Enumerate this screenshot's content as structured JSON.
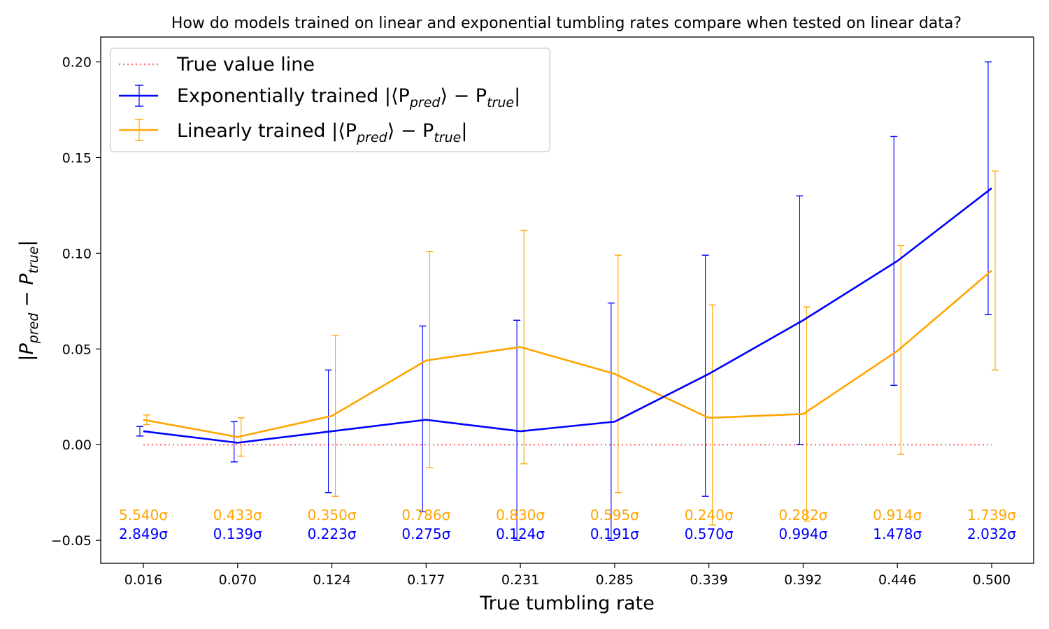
{
  "chart_data": {
    "type": "line",
    "title": "How do models trained on linear and exponential tumbling rates compare when tested on linear data?",
    "xlabel": "True tumbling rate",
    "ylabel_main": "|P",
    "ylabel_sub1": "pred",
    "ylabel_mid": " − P",
    "ylabel_sub2": "true",
    "ylabel_end": "|",
    "x": [
      0.016,
      0.07,
      0.124,
      0.177,
      0.231,
      0.285,
      0.339,
      0.392,
      0.446,
      0.5
    ],
    "xtick_labels": [
      "0.016",
      "0.070",
      "0.124",
      "0.177",
      "0.231",
      "0.285",
      "0.339",
      "0.392",
      "0.446",
      "0.500"
    ],
    "ylim": [
      -0.062,
      0.213
    ],
    "yticks": [
      -0.05,
      0.0,
      0.05,
      0.1,
      0.15,
      0.2
    ],
    "ytick_labels": [
      "−0.05",
      "0.00",
      "0.05",
      "0.10",
      "0.15",
      "0.20"
    ],
    "legend_position": "top-left",
    "legend": {
      "true_line_label": "True value line",
      "exp_label": "Exponentially trained |⟨P",
      "lin_label": "Linearly trained |⟨P",
      "sub_pred": "pred",
      "mid": "⟩ − P",
      "sub_true": "true",
      "end": "|"
    },
    "true_line": {
      "y": 0.0,
      "color": "#ff7777"
    },
    "series": [
      {
        "key": "exp",
        "color": "#0000ff",
        "values": [
          0.007,
          0.001,
          0.007,
          0.013,
          0.007,
          0.012,
          0.037,
          0.065,
          0.096,
          0.134
        ],
        "err_low": [
          0.0045,
          -0.009,
          -0.025,
          -0.035,
          -0.05,
          -0.05,
          -0.027,
          0.0,
          0.031,
          0.068
        ],
        "err_high": [
          0.0095,
          0.012,
          0.039,
          0.062,
          0.065,
          0.074,
          0.099,
          0.13,
          0.161,
          0.2
        ],
        "sigma_labels": [
          "2.849σ",
          "0.139σ",
          "0.223σ",
          "0.275σ",
          "0.124σ",
          "0.191σ",
          "0.570σ",
          "0.994σ",
          "1.478σ",
          "2.032σ"
        ]
      },
      {
        "key": "lin",
        "color": "#ffa500",
        "values": [
          0.013,
          0.004,
          0.015,
          0.044,
          0.051,
          0.037,
          0.014,
          0.016,
          0.049,
          0.091
        ],
        "err_low": [
          0.0105,
          -0.006,
          -0.027,
          -0.012,
          -0.01,
          -0.025,
          -0.042,
          -0.04,
          -0.005,
          0.039
        ],
        "err_high": [
          0.0155,
          0.014,
          0.057,
          0.101,
          0.112,
          0.099,
          0.073,
          0.072,
          0.104,
          0.143
        ],
        "sigma_labels": [
          "5.540σ",
          "0.433σ",
          "0.350σ",
          "0.786σ",
          "0.830σ",
          "0.595σ",
          "0.240σ",
          "0.282σ",
          "0.914σ",
          "1.739σ"
        ]
      }
    ]
  }
}
